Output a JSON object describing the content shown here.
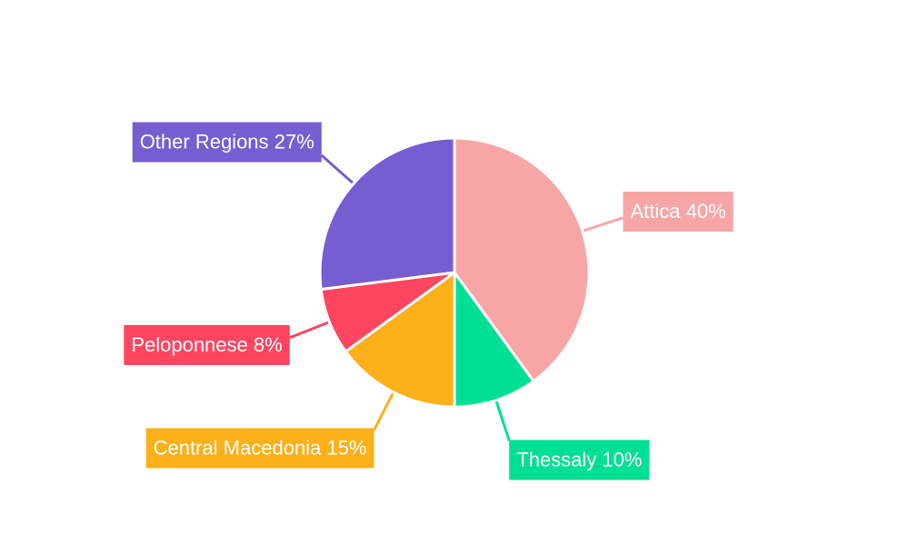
{
  "chart_data": {
    "type": "pie",
    "categories": [
      "Attica",
      "Thessaly",
      "Central Macedonia",
      "Peloponnese",
      "Other Regions"
    ],
    "values": [
      40,
      10,
      15,
      8,
      27
    ],
    "value_labels": [
      "40%",
      "10%",
      "15%",
      "8%",
      "27%"
    ],
    "colors": [
      "#f8a5a6",
      "#00e095",
      "#fdb01a",
      "#ff4560",
      "#775dd0"
    ]
  }
}
